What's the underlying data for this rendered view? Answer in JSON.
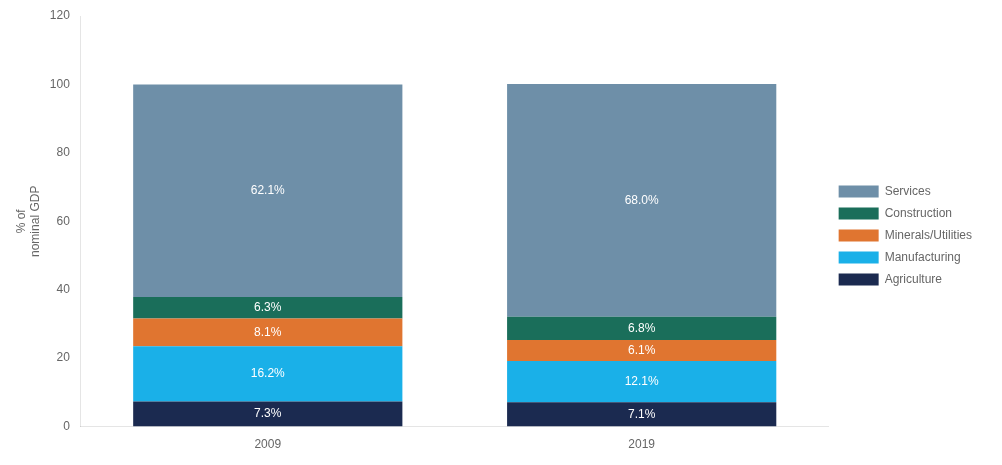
{
  "chart_data": {
    "type": "bar",
    "stacked": true,
    "categories": [
      "2009",
      "2019"
    ],
    "series": [
      {
        "name": "Agriculture",
        "color": "#1b2a50",
        "values": [
          7.3,
          7.1
        ],
        "value_labels": [
          "7.3%",
          "7.1%"
        ]
      },
      {
        "name": "Manufacturing",
        "color": "#1ab0e8",
        "values": [
          16.2,
          12.1
        ],
        "value_labels": [
          "16.2%",
          "12.1%"
        ]
      },
      {
        "name": "Minerals/Utilities",
        "color": "#e07530",
        "values": [
          8.1,
          6.1
        ],
        "value_labels": [
          "8.1%",
          "6.1%"
        ]
      },
      {
        "name": "Construction",
        "color": "#1a6e5a",
        "values": [
          6.3,
          6.8
        ],
        "value_labels": [
          "6.3%",
          "6.8%"
        ]
      },
      {
        "name": "Services",
        "color": "#6e8fa8",
        "values": [
          62.1,
          68.0
        ],
        "value_labels": [
          "62.1%",
          "68.0%"
        ]
      }
    ],
    "ylabel": "% of\nnominal GDP",
    "ylim": [
      0,
      120
    ],
    "yticks": [
      0,
      20,
      40,
      60,
      80,
      100,
      120
    ],
    "grid": false,
    "legend": "right",
    "data_labels": true
  }
}
